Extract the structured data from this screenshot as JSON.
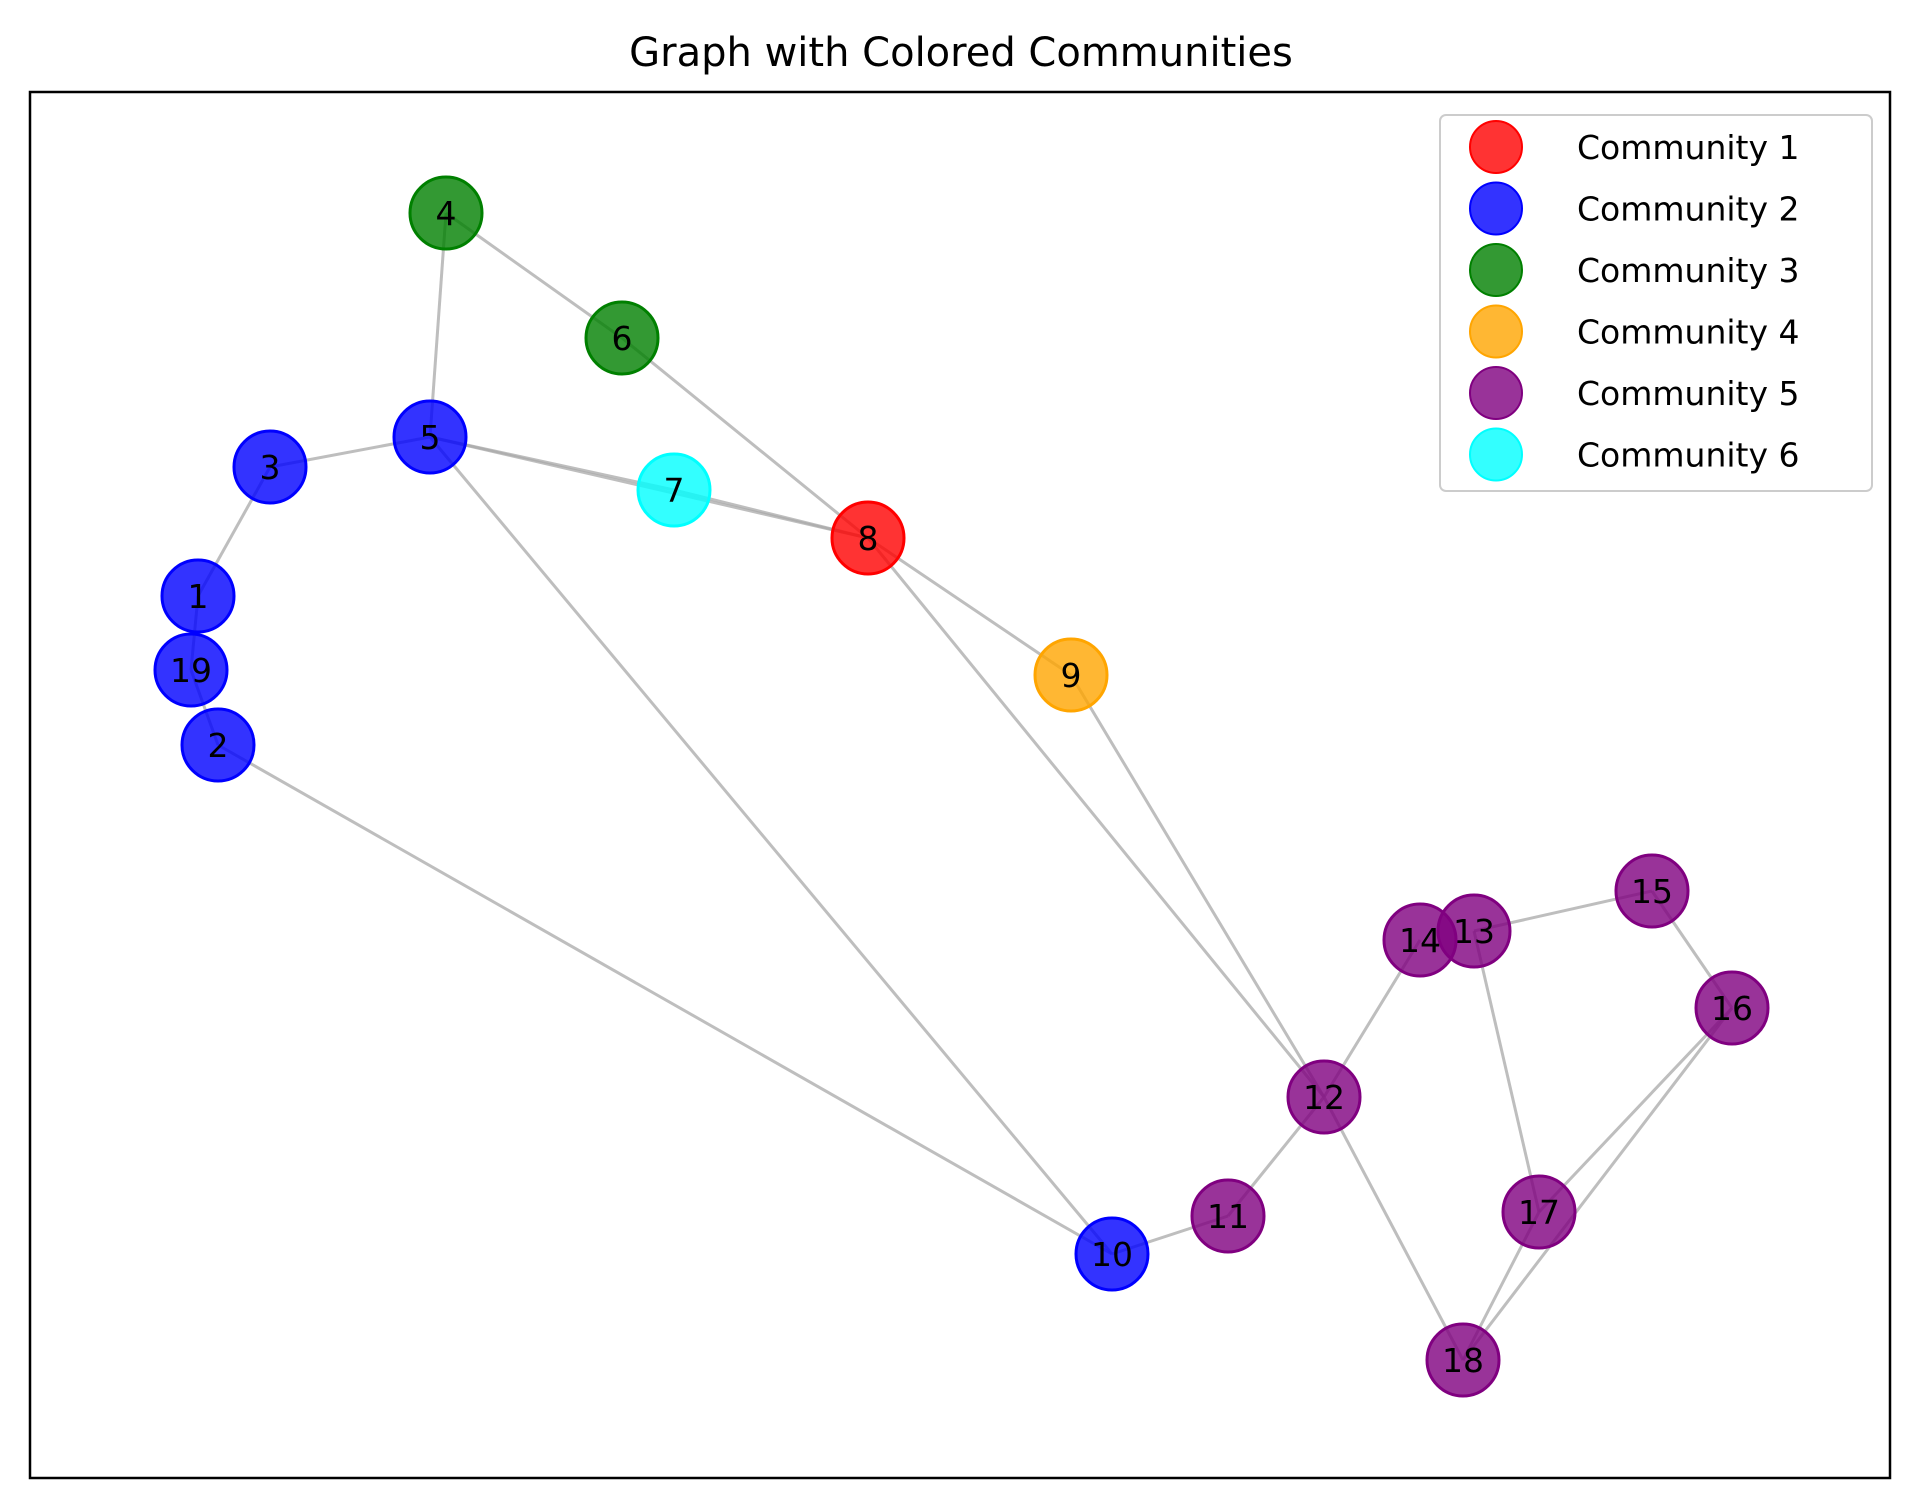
{
  "title": "Graph with Colored Communities",
  "communities": [
    {
      "id": 1,
      "name": "Community 1",
      "color": "#ff0000"
    },
    {
      "id": 2,
      "name": "Community 2",
      "color": "#0000ff"
    },
    {
      "id": 3,
      "name": "Community 3",
      "color": "#008000"
    },
    {
      "id": 4,
      "name": "Community 4",
      "color": "#ffa500"
    },
    {
      "id": 5,
      "name": "Community 5",
      "color": "#800080"
    },
    {
      "id": 6,
      "name": "Community 6",
      "color": "#00ffff"
    }
  ],
  "nodes": [
    {
      "id": "1",
      "community": 2
    },
    {
      "id": "2",
      "community": 2
    },
    {
      "id": "3",
      "community": 2
    },
    {
      "id": "4",
      "community": 3
    },
    {
      "id": "5",
      "community": 2
    },
    {
      "id": "6",
      "community": 3
    },
    {
      "id": "7",
      "community": 6
    },
    {
      "id": "8",
      "community": 1
    },
    {
      "id": "9",
      "community": 4
    },
    {
      "id": "10",
      "community": 2
    },
    {
      "id": "11",
      "community": 5
    },
    {
      "id": "12",
      "community": 5
    },
    {
      "id": "13",
      "community": 5
    },
    {
      "id": "14",
      "community": 5
    },
    {
      "id": "15",
      "community": 5
    },
    {
      "id": "16",
      "community": 5
    },
    {
      "id": "17",
      "community": 5
    },
    {
      "id": "18",
      "community": 5
    },
    {
      "id": "19",
      "community": 2
    }
  ],
  "edges": [
    [
      "1",
      "3"
    ],
    [
      "1",
      "19"
    ],
    [
      "19",
      "2"
    ],
    [
      "2",
      "10"
    ],
    [
      "3",
      "5"
    ],
    [
      "4",
      "5"
    ],
    [
      "4",
      "6"
    ],
    [
      "6",
      "8"
    ],
    [
      "5",
      "7"
    ],
    [
      "5",
      "8"
    ],
    [
      "7",
      "8"
    ],
    [
      "5",
      "10"
    ],
    [
      "8",
      "9"
    ],
    [
      "8",
      "12"
    ],
    [
      "9",
      "12"
    ],
    [
      "10",
      "11"
    ],
    [
      "11",
      "12"
    ],
    [
      "12",
      "14"
    ],
    [
      "12",
      "18"
    ],
    [
      "13",
      "15"
    ],
    [
      "13",
      "17"
    ],
    [
      "15",
      "16"
    ],
    [
      "16",
      "17"
    ],
    [
      "17",
      "18"
    ],
    [
      "16",
      "18"
    ]
  ]
}
